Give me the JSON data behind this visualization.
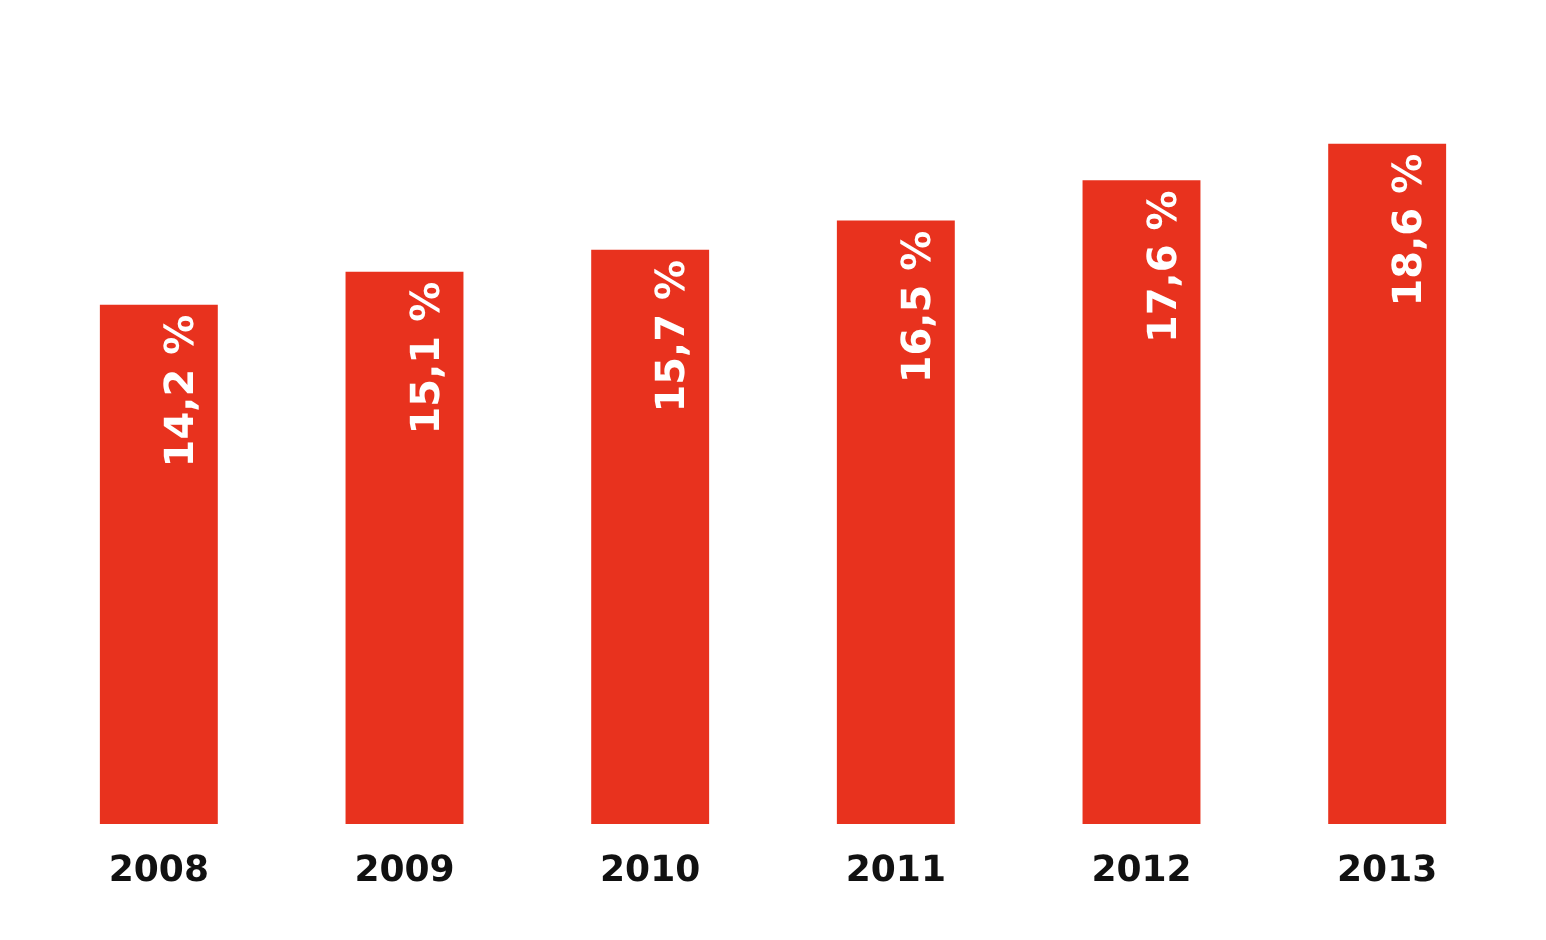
{
  "chart_data": {
    "type": "bar",
    "categories": [
      "2008",
      "2009",
      "2010",
      "2011",
      "2012",
      "2013"
    ],
    "values": [
      14.2,
      15.1,
      15.7,
      16.5,
      17.6,
      18.6
    ],
    "value_labels": [
      "14,2 %",
      "15,1 %",
      "15,7 %",
      "16,5 %",
      "17,6 %",
      "18,6 %"
    ],
    "color": "#e8321e"
  }
}
